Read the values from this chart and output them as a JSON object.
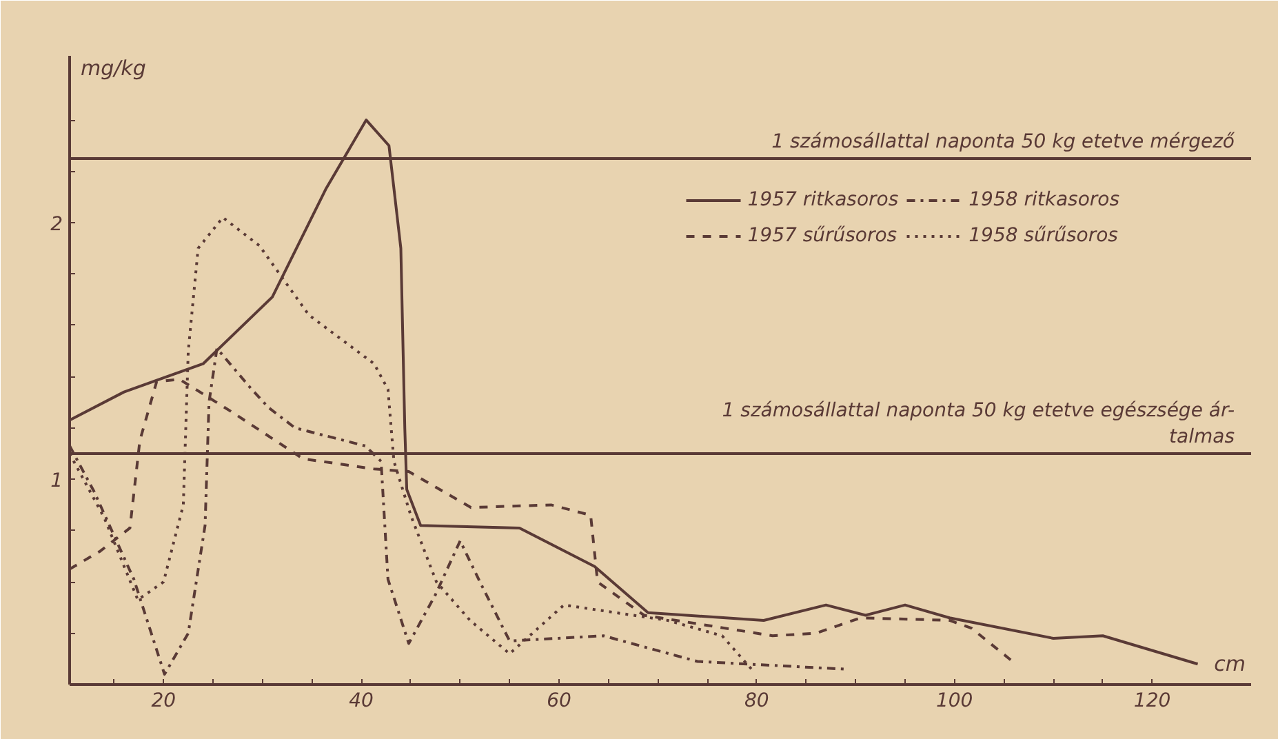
{
  "chart_data": {
    "type": "line",
    "ylabel": "mg/kg",
    "xlabel": "cm",
    "xlim": [
      10.5,
      130
    ],
    "ylim": [
      0.2,
      2.65
    ],
    "xticks": [
      {
        "value": 15,
        "label": null
      },
      20,
      {
        "value": 25,
        "label": null
      },
      {
        "value": 30,
        "label": null
      },
      {
        "value": 35,
        "label": null
      },
      40,
      {
        "value": 45,
        "label": null
      },
      {
        "value": 50,
        "label": null
      },
      {
        "value": 55,
        "label": null
      },
      60,
      {
        "value": 65,
        "label": null
      },
      {
        "value": 70,
        "label": null
      },
      {
        "value": 75,
        "label": null
      },
      80,
      {
        "value": 85,
        "label": null
      },
      {
        "value": 90,
        "label": null
      },
      {
        "value": 95,
        "label": null
      },
      100,
      {
        "value": 105,
        "label": null
      },
      {
        "value": 110,
        "label": null
      },
      {
        "value": 115,
        "label": null
      },
      120
    ],
    "yticks": [
      {
        "value": 0.4,
        "label": null
      },
      {
        "value": 0.6,
        "label": null
      },
      {
        "value": 0.8,
        "label": null
      },
      1,
      {
        "value": 1.2,
        "label": null
      },
      {
        "value": 1.4,
        "label": null
      },
      {
        "value": 1.6,
        "label": null
      },
      {
        "value": 1.8,
        "label": null
      },
      2,
      {
        "value": 2.2,
        "label": null
      },
      {
        "value": 2.4,
        "label": null
      }
    ],
    "grid": false,
    "legend": "top right",
    "marker": "none",
    "ref_lines": [
      {
        "axis": "y",
        "value": 2.25,
        "label": "1 számosállattal naponta 50 kg etetve mérgező",
        "color": "#5a3a36",
        "line_style": "solid"
      },
      {
        "axis": "y",
        "value": 1.1,
        "label": "1 számosállattal naponta 50 kg etetve egészsége ár-\ntalmas",
        "color": "#5a3a36",
        "line_style": "solid"
      }
    ],
    "series": [
      {
        "name": "1957 ritkasoros",
        "color": "#5a3a36",
        "line_style": "solid",
        "x": [
          10.5,
          16,
          24,
          31,
          36.4,
          40.5,
          42.8,
          44,
          44.4,
          44.6,
          46,
          56,
          63.6,
          69,
          80.7,
          87,
          91,
          95,
          99.5,
          110,
          115,
          124.6
        ],
        "values": [
          1.23,
          1.34,
          1.45,
          1.71,
          2.13,
          2.4,
          2.3,
          1.9,
          1.2,
          0.96,
          0.82,
          0.81,
          0.66,
          0.48,
          0.45,
          0.51,
          0.47,
          0.51,
          0.46,
          0.38,
          0.39,
          0.28
        ]
      },
      {
        "name": "1957 sűrűsoros",
        "color": "#5a3a36",
        "line_style": "dashed",
        "x": [
          10.5,
          13.6,
          16.6,
          17.6,
          19.3,
          21.6,
          27,
          34.1,
          41.3,
          44.8,
          51.1,
          59.2,
          63.2,
          63.9,
          68.6,
          81.6,
          86,
          90.5,
          99.5,
          101.7,
          106.2
        ],
        "values": [
          0.65,
          0.72,
          0.81,
          1.15,
          1.38,
          1.39,
          1.26,
          1.08,
          1.04,
          1.03,
          0.89,
          0.9,
          0.86,
          0.6,
          0.47,
          0.39,
          0.4,
          0.46,
          0.45,
          0.42,
          0.28
        ]
      },
      {
        "name": "1958 ritkasoros",
        "color": "#5a3a36",
        "line_style": "dashdot",
        "x": [
          10.5,
          13,
          17,
          20.1,
          22.5,
          24.2,
          24.6,
          25.4,
          28.7,
          30.6,
          33.3,
          40.4,
          42,
          42.7,
          44.8,
          47.5,
          50,
          52,
          55,
          64.5,
          74,
          88.9
        ],
        "values": [
          1.13,
          0.95,
          0.61,
          0.24,
          0.4,
          0.82,
          1.3,
          1.51,
          1.36,
          1.28,
          1.2,
          1.13,
          1.07,
          0.61,
          0.36,
          0.55,
          0.76,
          0.6,
          0.37,
          0.39,
          0.29,
          0.26
        ]
      },
      {
        "name": "1958 sűrűsoros",
        "color": "#5a3a36",
        "line_style": "dotted",
        "x": [
          10.5,
          14,
          17.4,
          20,
          22,
          22.5,
          23.5,
          26,
          29.7,
          34.7,
          41.3,
          42.7,
          43.3,
          45,
          47.6,
          51,
          55,
          60.5,
          71,
          76.5,
          79.7
        ],
        "values": [
          1.1,
          0.85,
          0.53,
          0.6,
          0.9,
          1.5,
          1.9,
          2.02,
          1.91,
          1.64,
          1.45,
          1.35,
          1.07,
          0.86,
          0.6,
          0.45,
          0.32,
          0.51,
          0.45,
          0.39,
          0.25
        ]
      }
    ]
  }
}
